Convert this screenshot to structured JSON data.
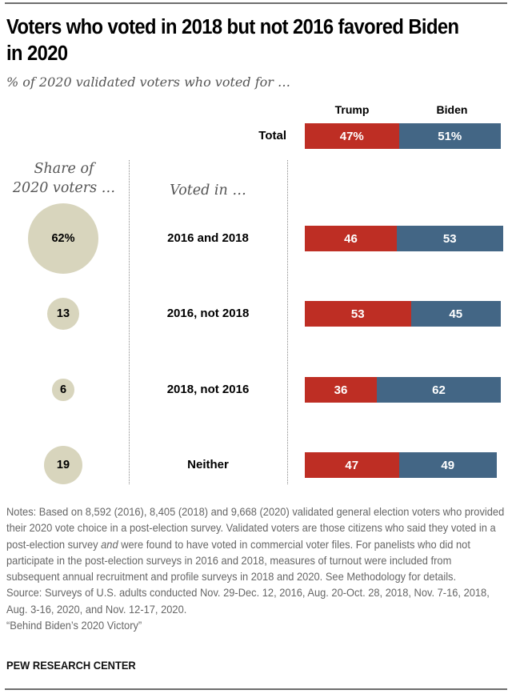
{
  "title": "Voters who voted in 2018 but not 2016 favored Biden in 2020",
  "subtitle": "% of 2020 validated voters who voted for …",
  "column_headers": {
    "share": "Share of 2020 voters …",
    "share_line1": "Share of",
    "share_line2": "2020 voters …",
    "voted_in": "Voted in …"
  },
  "colors": {
    "trump": "#be2e24",
    "biden": "#436685",
    "bubble": "#d8d5bd"
  },
  "chart_data": {
    "type": "bar",
    "orientation": "horizontal-stacked",
    "title": "Voters who voted in 2018 but not 2016 favored Biden in 2020",
    "subtitle": "% of 2020 validated voters who voted for …",
    "legend": [
      "Trump",
      "Biden"
    ],
    "legend_placement": "top",
    "categories": [
      "Total",
      "2016 and 2018",
      "2016, not 2018",
      "2018, not 2016",
      "Neither"
    ],
    "series": [
      {
        "name": "Trump",
        "values": [
          47,
          46,
          53,
          36,
          47
        ],
        "labels": [
          "47%",
          "46",
          "53",
          "36",
          "47"
        ]
      },
      {
        "name": "Biden",
        "values": [
          51,
          53,
          45,
          62,
          49
        ],
        "labels": [
          "51%",
          "53",
          "45",
          "62",
          "49"
        ]
      }
    ],
    "share_of_2020_voters": {
      "categories": [
        "2016 and 2018",
        "2016, not 2018",
        "2018, not 2016",
        "Neither"
      ],
      "values": [
        62,
        13,
        6,
        19
      ],
      "labels": [
        "62%",
        "13",
        "6",
        "19"
      ]
    },
    "xlim": [
      0,
      100
    ]
  },
  "notes": {
    "notes_pre": "Notes: Based on 8,592 (2016), 8,405 (2018) and 9,668 (2020) validated general election voters who provided their 2020 vote choice in a post-election survey. Validated voters are those citizens who said they voted in a post-election survey ",
    "notes_em": "and",
    "notes_post": " were found to have voted in commercial voter files. For panelists who did not participate in the post-election surveys in 2016 and 2018, measures of turnout were included from subsequent annual recruitment and profile surveys in 2018 and 2020. See Methodology for details.",
    "source": "Source: Surveys of U.S. adults conducted Nov. 29-Dec. 12, 2016, Aug. 20-Oct. 28, 2018, Nov. 7-16, 2018, Aug. 3-16, 2020, and Nov. 12-17, 2020.",
    "report": "“Behind Biden’s 2020 Victory”"
  },
  "brand": "PEW RESEARCH CENTER"
}
